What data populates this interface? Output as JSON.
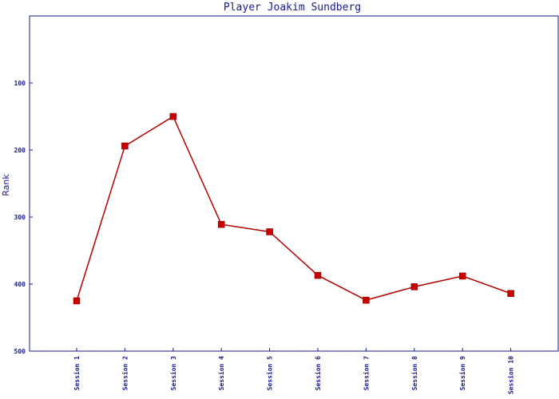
{
  "chart_data": {
    "type": "line",
    "title": "Player Joakim Sundberg",
    "xlabel": "",
    "ylabel": "Rank",
    "ylim": [
      0,
      500
    ],
    "y_inverted": true,
    "y_ticks": [
      100,
      200,
      300,
      400,
      500
    ],
    "grid": false,
    "categories": [
      "Session 1",
      "Session 2",
      "Session 3",
      "Session 4",
      "Session 5",
      "Session 6",
      "Session 7",
      "Session 8",
      "Session 9",
      "Session 10"
    ],
    "series": [
      {
        "values": [
          425,
          194,
          150,
          311,
          322,
          387,
          424,
          404,
          388,
          414
        ],
        "color": "#b30000",
        "marker": "square"
      }
    ],
    "colors": {
      "axis": "#1a1a8c",
      "line": "#b30000",
      "marker_fill": "#c80000"
    }
  }
}
